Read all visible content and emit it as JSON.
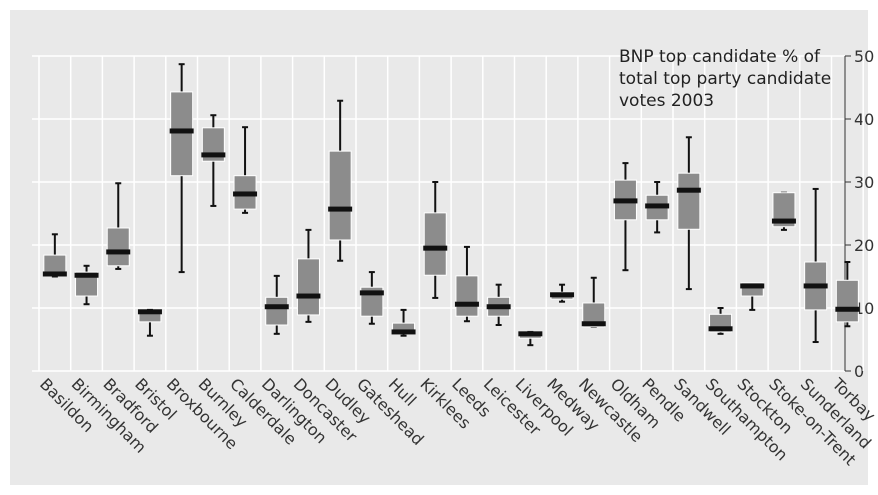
{
  "chart_data": {
    "type": "box",
    "title": "BNP top candidate % of total top party candidate votes 2003",
    "categories": [
      "Basildon",
      "Birmingham",
      "Bradford",
      "Bristol",
      "Broxbourne",
      "Burnley",
      "Calderdale",
      "Darlington",
      "Doncaster",
      "Dudley",
      "Gateshead",
      "Hull",
      "Kirklees",
      "Leeds",
      "Leicester",
      "Liverpool",
      "Medway",
      "Newcastle",
      "Oldham",
      "Pendle",
      "Sandwell",
      "Southampton",
      "Stockton",
      "Stoke-on-Trent",
      "Sunderland",
      "Torbay"
    ],
    "lows": [
      15,
      10.6,
      16.2,
      5.6,
      15.7,
      26.2,
      25.1,
      5.9,
      7.8,
      17.5,
      7.5,
      5.6,
      11.6,
      7.9,
      7.3,
      4.1,
      11,
      7,
      16,
      22,
      13,
      5.9,
      9.7,
      22.4,
      4.6,
      7.1
    ],
    "q1": [
      15.1,
      11.9,
      16.7,
      7.8,
      31,
      33.3,
      25.7,
      7.3,
      8.9,
      20.8,
      8.7,
      5.9,
      15.2,
      8.7,
      8.7,
      5.2,
      11.4,
      7,
      24,
      24,
      22.5,
      6.2,
      11.9,
      22.9,
      9.7,
      7.8
    ],
    "medians": [
      15.4,
      15.2,
      18.9,
      9.4,
      38.1,
      34.3,
      28.1,
      10.2,
      11.9,
      25.7,
      12.4,
      6.2,
      19.5,
      10.6,
      10.2,
      5.9,
      12.1,
      7.5,
      27,
      26.2,
      28.7,
      6.7,
      13.5,
      23.8,
      13.5,
      9.8
    ],
    "q3": [
      18.4,
      15.7,
      22.7,
      9.5,
      44.3,
      38.6,
      31,
      11.7,
      17.8,
      34.9,
      13.3,
      7.6,
      25.1,
      15.1,
      11.7,
      6.2,
      12.5,
      10.8,
      30.3,
      27.9,
      31.4,
      9,
      14,
      28.3,
      17.3,
      14.4
    ],
    "highs": [
      21.7,
      16.7,
      29.8,
      9.7,
      48.7,
      40.6,
      38.7,
      15.1,
      22.4,
      42.9,
      15.7,
      9.7,
      30,
      19.7,
      13.7,
      6.2,
      13.7,
      14.8,
      33,
      30,
      37.1,
      10,
      13.7,
      28.3,
      28.9,
      17.3
    ],
    "color": "#8c8c8c",
    "median_color": "#111111",
    "ylim": [
      0,
      50
    ],
    "yticks": [
      0,
      10,
      20,
      30,
      40,
      50
    ],
    "grid": true
  }
}
